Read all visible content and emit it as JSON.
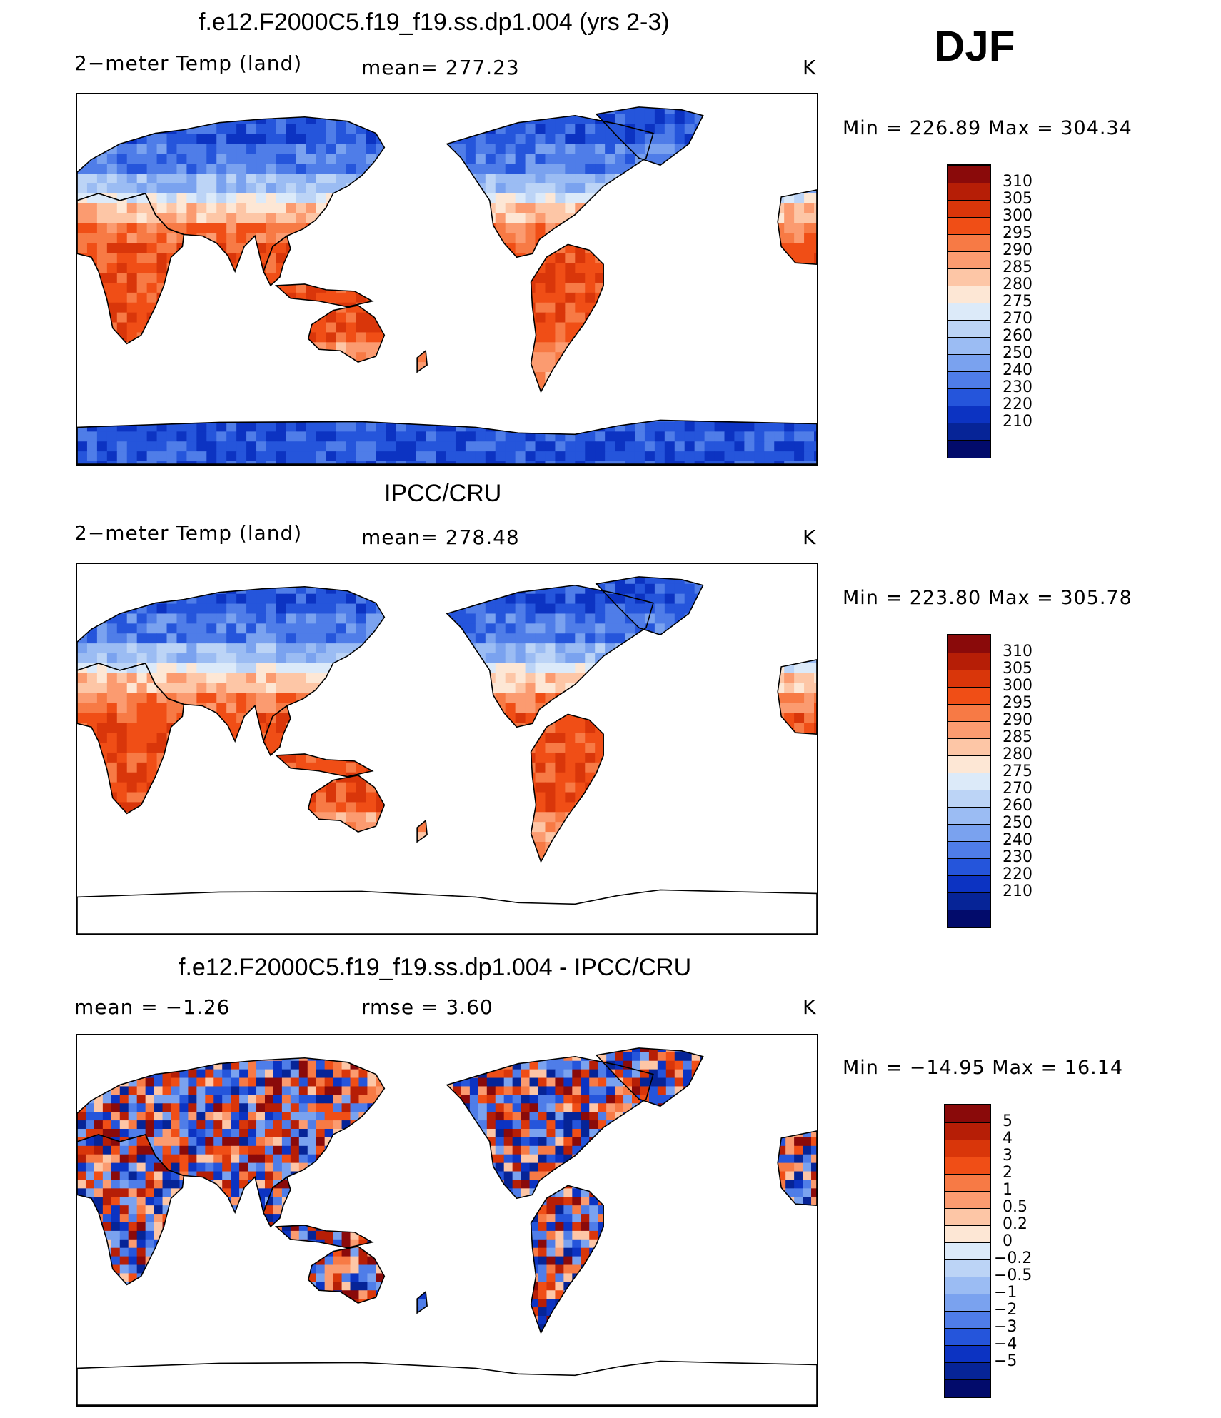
{
  "season": "DJF",
  "panels": [
    {
      "title": "f.e12.F2000C5.f19_f19.ss.dp1.004 (yrs 2-3)",
      "left_label": "2−meter Temp  (land)",
      "center_label": "mean=  277.23",
      "units": "K",
      "minmax": "Min  =  226.89  Max  =  304.34",
      "colorbar_labels": [
        "310",
        "305",
        "300",
        "295",
        "290",
        "285",
        "280",
        "275",
        "270",
        "260",
        "250",
        "240",
        "230",
        "220",
        "210"
      ],
      "colorbar_colors": [
        "#8a0a0a",
        "#b61e06",
        "#d9360a",
        "#f04e16",
        "#f77a45",
        "#fb9b70",
        "#fdc6a6",
        "#fde7d5",
        "#dceaf9",
        "#bcd4f6",
        "#9bbcf3",
        "#7aa2ef",
        "#4f7de8",
        "#2555db",
        "#0c33c2",
        "#062497",
        "#020b6b"
      ],
      "land": "temp"
    },
    {
      "title": "IPCC/CRU",
      "left_label": "2−meter Temp  (land)",
      "center_label": "mean=  278.48",
      "units": "K",
      "minmax": "Min  =  223.80  Max  =  305.78",
      "colorbar_labels": [
        "310",
        "305",
        "300",
        "295",
        "290",
        "285",
        "280",
        "275",
        "270",
        "260",
        "250",
        "240",
        "230",
        "220",
        "210"
      ],
      "colorbar_colors": [
        "#8a0a0a",
        "#b61e06",
        "#d9360a",
        "#f04e16",
        "#f77a45",
        "#fb9b70",
        "#fdc6a6",
        "#fde7d5",
        "#dceaf9",
        "#bcd4f6",
        "#9bbcf3",
        "#7aa2ef",
        "#4f7de8",
        "#2555db",
        "#0c33c2",
        "#062497",
        "#020b6b"
      ],
      "land": "temp-obs"
    },
    {
      "title": "f.e12.F2000C5.f19_f19.ss.dp1.004 - IPCC/CRU",
      "left_label": "mean =     −1.26",
      "center_label": "rmse =      3.60",
      "units": "K",
      "minmax": "Min  =  −14.95  Max  =     16.14",
      "colorbar_labels": [
        "5",
        "4",
        "3",
        "2",
        "1",
        "0.5",
        "0.2",
        "0",
        "−0.2",
        "−0.5",
        "−1",
        "−2",
        "−3",
        "−4",
        "−5"
      ],
      "colorbar_colors": [
        "#8a0a0a",
        "#b61e06",
        "#d9360a",
        "#f04e16",
        "#f77a45",
        "#fb9b70",
        "#fdc6a6",
        "#fde7d5",
        "#dceaf9",
        "#bcd4f6",
        "#9bbcf3",
        "#7aa2ef",
        "#4f7de8",
        "#2555db",
        "#0c33c2",
        "#062497",
        "#020b6b"
      ],
      "land": "diff"
    }
  ]
}
